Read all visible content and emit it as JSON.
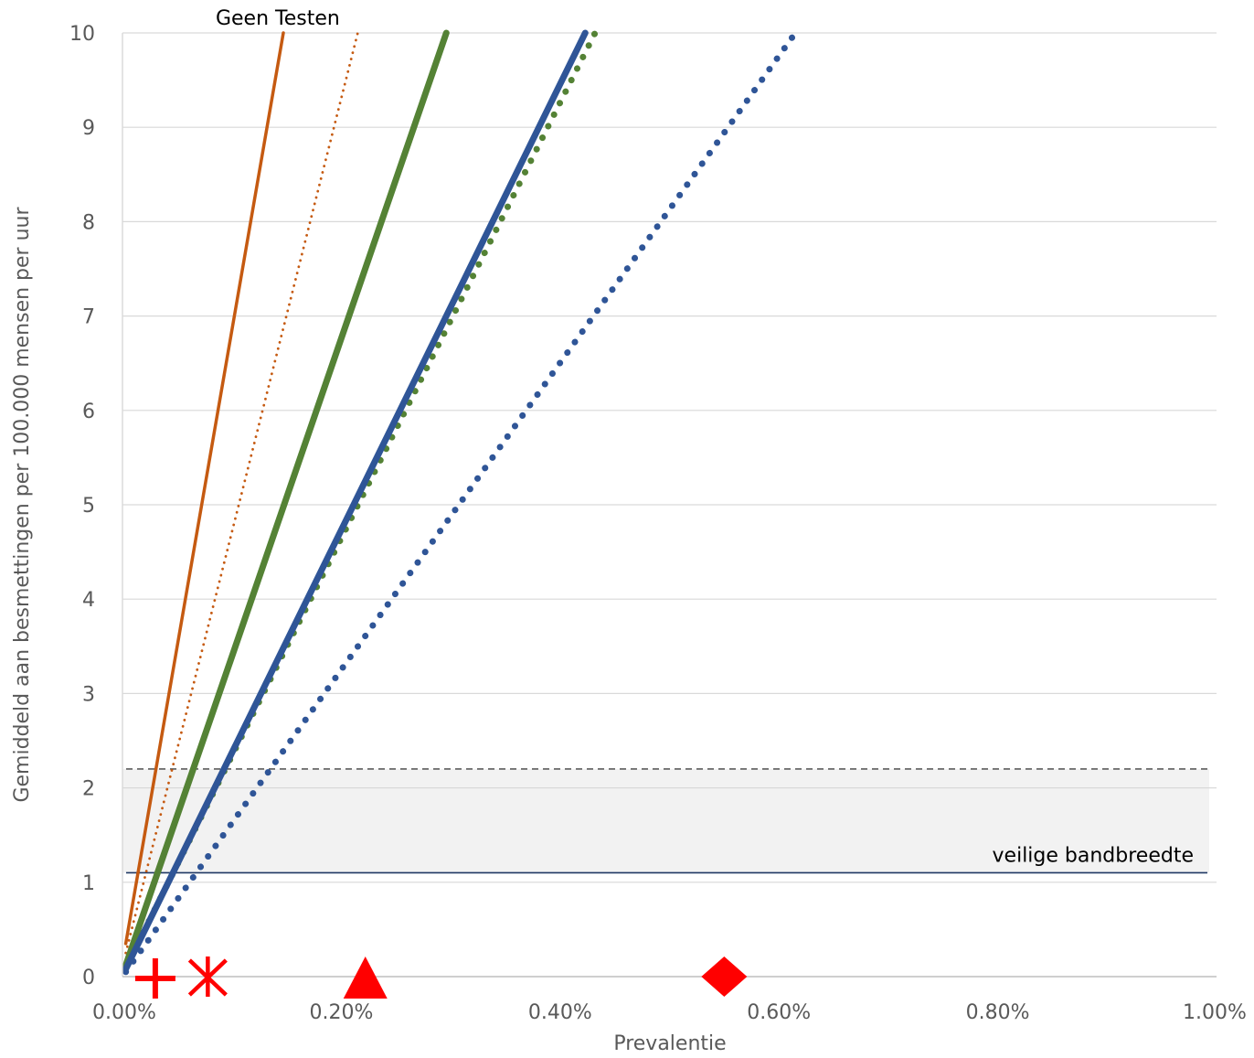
{
  "chart_data": {
    "type": "line",
    "title": "",
    "xlabel": "Prevalentie",
    "ylabel": "Gemiddeld aan besmettingen per 100.000 mensen per uur",
    "xlim": [
      0,
      0.01
    ],
    "ylim": [
      0,
      10
    ],
    "x_tick_values": [
      0,
      0.002,
      0.004,
      0.006,
      0.008,
      0.01
    ],
    "x_tick_labels": [
      "0.00%",
      "0.20%",
      "0.40%",
      "0.60%",
      "0.80%",
      "1.00%"
    ],
    "y_tick_values": [
      0,
      1,
      2,
      3,
      4,
      5,
      6,
      7,
      8,
      9,
      10
    ],
    "y_tick_labels": [
      "0",
      "1",
      "2",
      "3",
      "4",
      "5",
      "6",
      "7",
      "8",
      "9",
      "10"
    ],
    "grid": "horizontal",
    "legend": "none",
    "series": [
      {
        "style": "solid",
        "color": "#C55A11",
        "x": [
          3e-05,
          0.00147
        ],
        "y": [
          0.35,
          10
        ]
      },
      {
        "style": "dotted",
        "color": "#C55A11",
        "x": [
          3e-05,
          0.00215
        ],
        "y": [
          0.25,
          10
        ]
      },
      {
        "style": "solid-thick",
        "color": "#548235",
        "x": [
          3e-05,
          0.00296
        ],
        "y": [
          0.12,
          10
        ]
      },
      {
        "style": "dotted-thick",
        "color": "#548235",
        "x": [
          3e-05,
          0.00432
        ],
        "y": [
          0.1,
          10
        ]
      },
      {
        "style": "solid-thick",
        "color": "#2F5597",
        "x": [
          3e-05,
          0.00423
        ],
        "y": [
          0.08,
          10
        ]
      },
      {
        "style": "dotted-thick",
        "color": "#2F5597",
        "x": [
          3e-05,
          0.00615
        ],
        "y": [
          0.05,
          10
        ]
      }
    ],
    "reference_band": {
      "y_low": 1.1,
      "y_high": 2.2,
      "fill": "#F2F2F2",
      "upper_line_style": "dashed"
    },
    "reference_line": {
      "y": 1.1,
      "color": "#1F3864"
    },
    "markers": [
      {
        "shape": "plus",
        "x": 0.0003,
        "y": 0,
        "color": "#FF0000"
      },
      {
        "shape": "asterisk",
        "x": 0.00078,
        "y": 0,
        "color": "#FF0000"
      },
      {
        "shape": "triangle",
        "x": 0.00222,
        "y": 0,
        "color": "#FF0000"
      },
      {
        "shape": "diamond",
        "x": 0.0055,
        "y": 0,
        "color": "#FF0000"
      }
    ],
    "annotations": [
      {
        "text": "Geen Testen",
        "x": 0.00147,
        "y": 10
      },
      {
        "text": "veilige bandbreedte",
        "x": 0.00985,
        "y": 1.1
      }
    ]
  }
}
